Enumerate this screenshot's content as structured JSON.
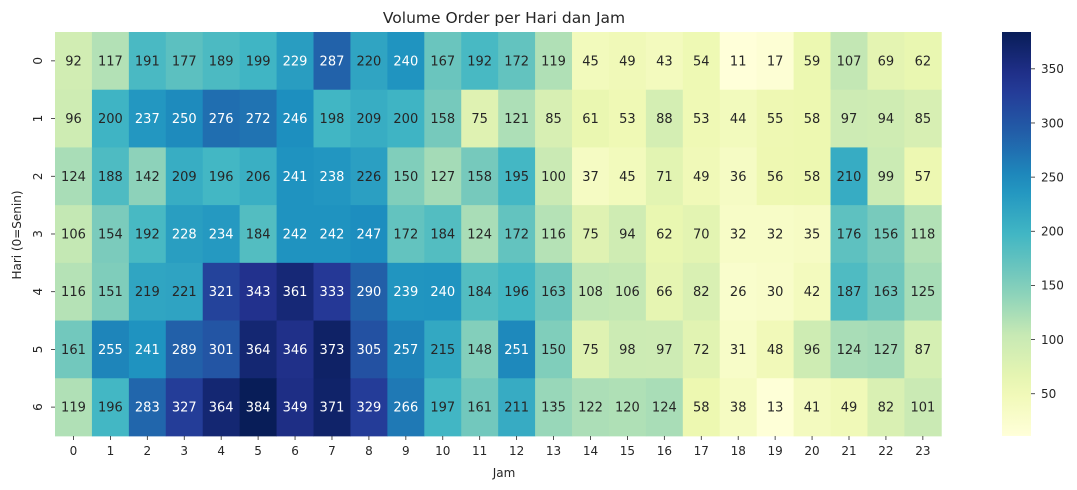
{
  "chart_data": {
    "type": "heatmap",
    "title": "Volume Order per Hari dan Jam",
    "xlabel": "Jam",
    "ylabel": "Hari (0=Senin)",
    "x": [
      "0",
      "1",
      "2",
      "3",
      "4",
      "5",
      "6",
      "7",
      "8",
      "9",
      "10",
      "11",
      "12",
      "13",
      "14",
      "15",
      "16",
      "17",
      "18",
      "19",
      "20",
      "21",
      "22",
      "23"
    ],
    "y": [
      "0",
      "1",
      "2",
      "3",
      "4",
      "5",
      "6"
    ],
    "values": [
      [
        92,
        117,
        191,
        177,
        189,
        199,
        229,
        287,
        220,
        240,
        167,
        192,
        172,
        119,
        45,
        49,
        43,
        54,
        11,
        17,
        59,
        107,
        69,
        62
      ],
      [
        96,
        200,
        237,
        250,
        276,
        272,
        246,
        198,
        209,
        200,
        158,
        75,
        121,
        85,
        61,
        53,
        88,
        53,
        44,
        55,
        58,
        97,
        94,
        85
      ],
      [
        124,
        188,
        142,
        209,
        196,
        206,
        241,
        238,
        226,
        150,
        127,
        158,
        195,
        100,
        37,
        45,
        71,
        49,
        36,
        56,
        58,
        210,
        99,
        57
      ],
      [
        106,
        154,
        192,
        228,
        234,
        184,
        242,
        242,
        247,
        172,
        184,
        124,
        172,
        116,
        75,
        94,
        62,
        70,
        32,
        32,
        35,
        176,
        156,
        118
      ],
      [
        116,
        151,
        219,
        221,
        321,
        343,
        361,
        333,
        290,
        239,
        240,
        184,
        196,
        163,
        108,
        106,
        66,
        82,
        26,
        30,
        42,
        187,
        163,
        125
      ],
      [
        161,
        255,
        241,
        289,
        301,
        364,
        346,
        373,
        305,
        257,
        215,
        148,
        251,
        150,
        75,
        98,
        97,
        72,
        31,
        48,
        96,
        124,
        127,
        87
      ],
      [
        119,
        196,
        283,
        327,
        364,
        384,
        349,
        371,
        329,
        266,
        197,
        161,
        211,
        135,
        122,
        120,
        124,
        58,
        38,
        13,
        41,
        49,
        82,
        101
      ]
    ],
    "colormap": "YlGnBu",
    "colorbar": {
      "min": 11,
      "max": 384,
      "ticks": [
        50,
        100,
        150,
        200,
        250,
        300,
        350
      ]
    },
    "annotations": true
  }
}
